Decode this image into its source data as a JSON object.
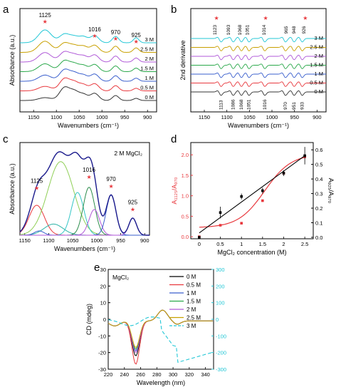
{
  "figure": {
    "units_note": ""
  },
  "chart_data": [
    {
      "panel": "a",
      "type": "line",
      "xlabel": "Wavenumbers (cm⁻¹)",
      "ylabel": "Absorbance (a.u.)",
      "xlim": [
        1180,
        880
      ],
      "x_ticks": [
        "1150",
        "1100",
        "1050",
        "1000",
        "950",
        "900"
      ],
      "peak_labels": [
        "1125",
        "1016",
        "970",
        "925"
      ],
      "peak_positions": [
        1125,
        1016,
        970,
        925
      ],
      "series": [
        {
          "name": "0 M",
          "color": "#333333"
        },
        {
          "name": "0.5 M",
          "color": "#e8383d"
        },
        {
          "name": "1 M",
          "color": "#3a5fcd"
        },
        {
          "name": "1.5 M",
          "color": "#2aa84a"
        },
        {
          "name": "2 M",
          "color": "#b05ad8"
        },
        {
          "name": "2.5 M",
          "color": "#c8a000"
        },
        {
          "name": "3 M",
          "color": "#22c7d6"
        }
      ]
    },
    {
      "panel": "b",
      "type": "line",
      "xlabel": "Wavenumbers (cm⁻¹)",
      "ylabel": "2nd derivative",
      "xlim": [
        1180,
        880
      ],
      "x_ticks": [
        "1150",
        "1100",
        "1050",
        "1000",
        "950",
        "900"
      ],
      "top_labels": [
        "1123",
        "1093",
        "1068",
        "1051",
        "1014",
        "965",
        "948",
        "926"
      ],
      "bottom_labels": [
        "1113",
        "1086",
        "1068",
        "1051",
        "1016",
        "970",
        "951",
        "933"
      ],
      "series": [
        {
          "name": "0 M",
          "color": "#333333"
        },
        {
          "name": "0.5 M",
          "color": "#e8383d"
        },
        {
          "name": "1 M",
          "color": "#3a5fcd"
        },
        {
          "name": "1.5 M",
          "color": "#2aa84a"
        },
        {
          "name": "2 M",
          "color": "#b05ad8"
        },
        {
          "name": "2.5 M",
          "color": "#c8a000"
        },
        {
          "name": "3 M",
          "color": "#22c7d6"
        }
      ]
    },
    {
      "panel": "c",
      "type": "line",
      "xlabel": "Wavenumbers (cm⁻¹)",
      "ylabel": "Absorbance (a.u.)",
      "annotation": "2 M MgCl₂",
      "xlim": [
        1160,
        890
      ],
      "x_ticks": [
        "1150",
        "1100",
        "1050",
        "1000",
        "950",
        "900"
      ],
      "peak_labels": [
        "1125",
        "1016",
        "970",
        "925"
      ],
      "peak_positions": [
        1125,
        1016,
        970,
        925
      ],
      "components": [
        {
          "center": 1125,
          "height": 0.35,
          "width": 16,
          "color": "#e8383d"
        },
        {
          "center": 1090,
          "height": 0.13,
          "width": 20,
          "color": "#2bb3a6"
        },
        {
          "center": 1075,
          "height": 0.86,
          "width": 27,
          "color": "#8fcf56"
        },
        {
          "center": 1040,
          "height": 0.5,
          "width": 13,
          "color": "#34c6c6"
        },
        {
          "center": 1016,
          "height": 0.56,
          "width": 12,
          "color": "#2a8c4a"
        },
        {
          "center": 1005,
          "height": 0.3,
          "width": 11,
          "color": "#b05ad8"
        },
        {
          "center": 1120,
          "height": 0.05,
          "width": 10,
          "color": "#3a5fcd"
        },
        {
          "center": 970,
          "height": 0.47,
          "width": 10,
          "color": "#3a5fcd"
        },
        {
          "center": 925,
          "height": 0.2,
          "width": 8,
          "color": "#b05ad8"
        }
      ],
      "envelope_color": "#1a1a8c"
    },
    {
      "panel": "d",
      "type": "scatter",
      "xlabel": "MgCl₂ concentration (M)",
      "ylabel_left": "A₁₁₂₅/A₉₇₀",
      "ylabel_right": "A₉₂₅/A₉₇₀",
      "xlim": [
        -0.2,
        2.7
      ],
      "ylim_left": [
        -0.05,
        2.3
      ],
      "ylim_right": [
        -0.01,
        0.65
      ],
      "x_ticks": [
        "0",
        "0.5",
        "1",
        "1.5",
        "2",
        "2.5"
      ],
      "y_left_ticks": [
        "0.0",
        "0.5",
        "1.0",
        "1.5",
        "2.0"
      ],
      "y_right_ticks": [
        "0.0",
        "0.1",
        "0.2",
        "0.3",
        "0.4",
        "0.5",
        "0.6"
      ],
      "series": [
        {
          "name": "A1125/A970",
          "axis": "left",
          "color": "#e8383d",
          "x": [
            0,
            0.5,
            1,
            1.5,
            2,
            2.5
          ],
          "y": [
            0.0,
            0.28,
            0.33,
            0.88,
            1.55,
            1.95
          ]
        },
        {
          "name": "A925/A970",
          "axis": "right",
          "color": "#000000",
          "x": [
            0,
            0.5,
            1,
            1.5,
            2,
            2.5
          ],
          "y": [
            0.0,
            0.17,
            0.28,
            0.32,
            0.44,
            0.56
          ],
          "err": [
            0.0,
            0.04,
            0.02,
            0.02,
            0.02,
            0.06
          ]
        }
      ]
    },
    {
      "panel": "e",
      "type": "line",
      "xlabel": "Wavelength (nm)",
      "ylabel": "CD (mdeg)",
      "annotation": "MgCl₂",
      "xlim": [
        220,
        350
      ],
      "ylim_left": [
        -30,
        30
      ],
      "ylim_right": [
        -300,
        300
      ],
      "x_ticks": [
        "220",
        "240",
        "260",
        "280",
        "300",
        "320",
        "340"
      ],
      "y_left_ticks": [
        "-30",
        "-20",
        "-10",
        "0",
        "10",
        "20",
        "30"
      ],
      "y_right_ticks": [
        "-300",
        "-200",
        "-100",
        "0",
        "100",
        "200",
        "300"
      ],
      "series": [
        {
          "name": "0 M",
          "color": "#000000"
        },
        {
          "name": "0.5 M",
          "color": "#e8383d"
        },
        {
          "name": "1 M",
          "color": "#3a5fcd"
        },
        {
          "name": "1.5 M",
          "color": "#2aa84a"
        },
        {
          "name": "2 M",
          "color": "#b05ad8"
        },
        {
          "name": "2.5 M",
          "color": "#c8a000"
        },
        {
          "name": "3 M",
          "color": "#22c7d6",
          "dashed": true,
          "axis": "right"
        }
      ]
    }
  ],
  "panel_letters": [
    "a",
    "b",
    "c",
    "d",
    "e"
  ]
}
